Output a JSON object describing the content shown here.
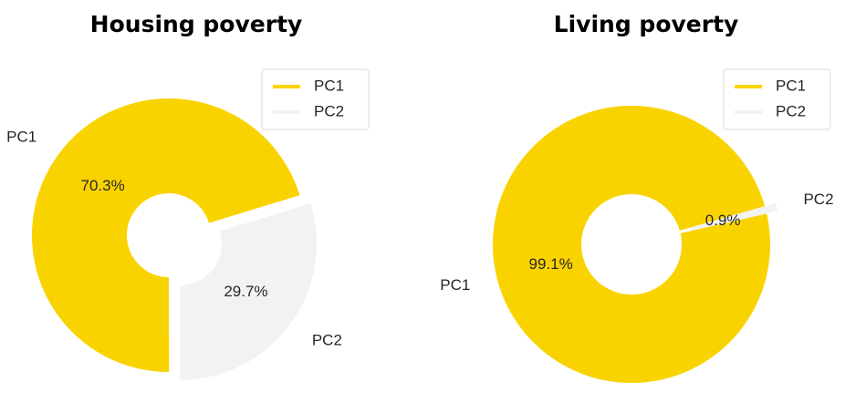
{
  "chart_data": [
    {
      "type": "pie",
      "title": "Housing poverty",
      "categories": [
        "PC1",
        "PC2"
      ],
      "values": [
        70.3,
        29.7
      ],
      "value_labels": [
        "70.3%",
        "29.7%"
      ],
      "colors": [
        "#f9d300",
        "#f2f2f2"
      ],
      "legend": "upper right"
    },
    {
      "type": "pie",
      "title": "Living poverty",
      "categories": [
        "PC1",
        "PC2"
      ],
      "values": [
        99.1,
        0.9
      ],
      "value_labels": [
        "99.1%",
        "0.9%"
      ],
      "colors": [
        "#f9d300",
        "#f2f2f2"
      ],
      "legend": "upper right"
    }
  ]
}
